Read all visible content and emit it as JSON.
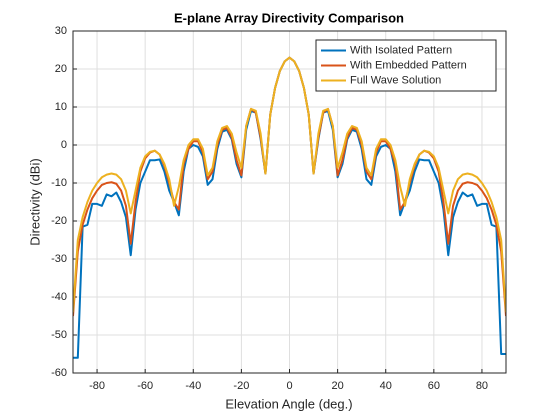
{
  "chart_data": {
    "type": "line",
    "title": "E-plane Array Directivity Comparison",
    "xlabel": "Elevation Angle (deg.)",
    "ylabel": "Directivity (dBi)",
    "x": [
      -90,
      -88,
      -86,
      -84,
      -82,
      -80,
      -78,
      -76,
      -74,
      -72,
      -70,
      -68,
      -66,
      -64,
      -62,
      -60,
      -58,
      -56,
      -54,
      -52,
      -50,
      -48,
      -46,
      -44,
      -42,
      -40,
      -38,
      -36,
      -34,
      -32,
      -30,
      -28,
      -26,
      -24,
      -22,
      -20,
      -18,
      -16,
      -14,
      -12,
      -10,
      -8,
      -6,
      -4,
      -2,
      0,
      2,
      4,
      6,
      8,
      10,
      12,
      14,
      16,
      18,
      20,
      22,
      24,
      26,
      28,
      30,
      32,
      34,
      36,
      38,
      40,
      42,
      44,
      46,
      48,
      50,
      52,
      54,
      56,
      58,
      60,
      62,
      64,
      66,
      68,
      70,
      72,
      74,
      76,
      78,
      80,
      82,
      84,
      86,
      88,
      90
    ],
    "series": [
      {
        "name": "With Isolated Pattern",
        "color": "#0072bd",
        "values": [
          -56,
          -56,
          -21.5,
          -21,
          -15.5,
          -15.5,
          -16,
          -13,
          -13.5,
          -12.5,
          -15,
          -19,
          -29,
          -17,
          -10,
          -7,
          -4,
          -4,
          -3.8,
          -7,
          -12,
          -15,
          -18.5,
          -7,
          -1,
          0,
          -0.5,
          -3,
          -10.5,
          -9,
          -1,
          3.5,
          4,
          1.5,
          -5,
          -8.5,
          4,
          9,
          8.5,
          1.5,
          -7.5,
          8,
          15,
          19.5,
          22,
          23,
          22,
          19.5,
          15,
          8,
          -7.5,
          1.5,
          8.5,
          9,
          4,
          -8.5,
          -5,
          1.5,
          4,
          3.5,
          -1,
          -9,
          -10.5,
          -3,
          -0.5,
          0,
          -1,
          -7,
          -18.5,
          -15,
          -12,
          -7,
          -3.8,
          -4,
          -4,
          -7,
          -10,
          -17,
          -29,
          -19,
          -15,
          -12.5,
          -13.5,
          -13,
          -16,
          -15.5,
          -15.5,
          -21,
          -21.5,
          -55,
          -55
        ]
      },
      {
        "name": "With Embedded Pattern",
        "color": "#d95319",
        "values": [
          -45,
          -28,
          -21,
          -17,
          -14,
          -12,
          -10.5,
          -10,
          -9.8,
          -10.2,
          -12,
          -16,
          -26,
          -15,
          -7,
          -3.5,
          -2,
          -1.5,
          -2.5,
          -5.5,
          -10,
          -15,
          -17,
          -5,
          -1,
          1,
          1,
          -2,
          -9,
          -7,
          0,
          4,
          4.5,
          2,
          -4,
          -8,
          5,
          9.5,
          8.5,
          2,
          -7.5,
          8,
          15,
          19.5,
          22,
          23,
          22,
          19.5,
          15,
          8,
          -7.5,
          2,
          8.5,
          9.5,
          5,
          -8,
          -4,
          2,
          4.5,
          4,
          0,
          -7,
          -9,
          -2,
          1,
          1,
          -1,
          -5,
          -17,
          -15,
          -10,
          -5.5,
          -2.5,
          -1.5,
          -2,
          -3.5,
          -7,
          -15,
          -26,
          -16,
          -12,
          -10.2,
          -9.8,
          -10,
          -10.5,
          -12,
          -14,
          -17,
          -21,
          -28,
          -45
        ]
      },
      {
        "name": "Full Wave Solution",
        "color": "#edb120",
        "values": [
          -44,
          -25,
          -19,
          -15,
          -12,
          -10,
          -8.5,
          -7.8,
          -7.5,
          -7.8,
          -9,
          -12,
          -18,
          -12,
          -6,
          -3,
          -1.8,
          -1.5,
          -2.5,
          -5,
          -9,
          -16,
          -11,
          -4,
          0,
          1.5,
          1.5,
          -1,
          -8,
          -6,
          1,
          4.5,
          5,
          3,
          -2,
          -6,
          5,
          9.5,
          9,
          3,
          -7.5,
          8,
          15,
          19.5,
          22,
          23,
          22,
          19.5,
          15,
          8,
          -7.5,
          3,
          9,
          9.5,
          5,
          -6,
          -2,
          3,
          5,
          4.5,
          1,
          -6,
          -8,
          -1,
          1.5,
          1.5,
          0,
          -4,
          -11,
          -16,
          -9,
          -5,
          -2.5,
          -1.5,
          -1.8,
          -3,
          -6,
          -12,
          -18,
          -12,
          -9,
          -7.8,
          -7.5,
          -7.8,
          -8.5,
          -10,
          -12,
          -15,
          -19,
          -25,
          -44
        ]
      }
    ],
    "xlim": [
      -90,
      90
    ],
    "xticks": [
      -80,
      -60,
      -40,
      -20,
      0,
      20,
      40,
      60,
      80
    ],
    "ylim": [
      -60,
      30
    ],
    "yticks": [
      -60,
      -50,
      -40,
      -30,
      -20,
      -10,
      0,
      10,
      20,
      30
    ],
    "grid": true,
    "legend": "northeast"
  }
}
